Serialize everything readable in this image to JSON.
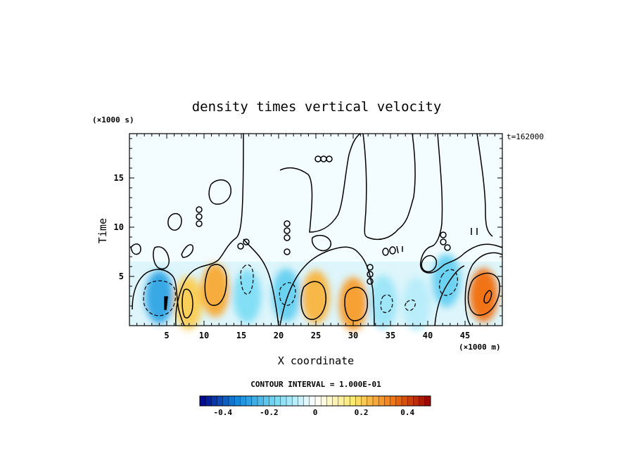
{
  "chart_data": {
    "type": "heatmap",
    "title": "density times vertical velocity",
    "xlabel": "X coordinate",
    "ylabel": "Time",
    "x_unit": "(×1000 m)",
    "y_unit": "(×1000 s)",
    "time_stamp": "t=162000",
    "contour_interval_label": "CONTOUR INTERVAL = 1.000E-01",
    "xlim": [
      0,
      50
    ],
    "ylim": [
      0,
      19.5
    ],
    "x_ticks": [
      5,
      10,
      15,
      20,
      25,
      30,
      35,
      40,
      45
    ],
    "y_ticks": [
      5,
      10,
      15
    ],
    "colorbar": {
      "range": [
        -0.5,
        0.5
      ],
      "ticks": [
        {
          "value": -0.4,
          "label": "-0.4"
        },
        {
          "value": -0.2,
          "label": "-0.2"
        },
        {
          "value": 0,
          "label": "0"
        },
        {
          "value": 0.2,
          "label": "0.2"
        },
        {
          "value": 0.4,
          "label": "0.4"
        }
      ]
    },
    "features": [
      {
        "sign": "negative",
        "x": 4.0,
        "y": 2.9,
        "value": -0.16
      },
      {
        "sign": "positive",
        "x": 7.9,
        "y": 2.3,
        "value": 0.12
      },
      {
        "sign": "positive",
        "x": 11.5,
        "y": 3.6,
        "value": 0.15
      },
      {
        "sign": "negative",
        "x": 15.8,
        "y": 3.0,
        "value": -0.09
      },
      {
        "sign": "negative",
        "x": 21.0,
        "y": 3.1,
        "value": -0.11
      },
      {
        "sign": "positive",
        "x": 25.0,
        "y": 2.9,
        "value": 0.14
      },
      {
        "sign": "positive",
        "x": 30.0,
        "y": 2.2,
        "value": 0.16
      },
      {
        "sign": "negative",
        "x": 34.0,
        "y": 2.4,
        "value": -0.07
      },
      {
        "sign": "negative",
        "x": 38.5,
        "y": 2.2,
        "value": -0.05
      },
      {
        "sign": "negative",
        "x": 42.5,
        "y": 4.6,
        "value": -0.11
      },
      {
        "sign": "positive",
        "x": 47.5,
        "y": 3.1,
        "value": 0.2
      }
    ]
  }
}
